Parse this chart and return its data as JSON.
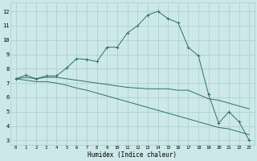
{
  "xlabel": "Humidex (Indice chaleur)",
  "x_ticks": [
    0,
    1,
    2,
    3,
    4,
    5,
    6,
    7,
    8,
    9,
    10,
    11,
    12,
    13,
    14,
    15,
    16,
    17,
    18,
    19,
    20,
    21,
    22,
    23
  ],
  "y_ticks": [
    3,
    4,
    5,
    6,
    7,
    8,
    9,
    10,
    11,
    12
  ],
  "ylim": [
    2.7,
    12.6
  ],
  "xlim": [
    -0.5,
    23.5
  ],
  "background_color": "#cde8e8",
  "grid_color": "#aacccc",
  "line_color": "#2a7070",
  "line1_x": [
    0,
    1,
    2,
    3,
    4,
    5,
    6,
    7,
    8,
    9,
    10,
    11,
    12,
    13,
    14,
    15,
    16,
    17,
    18,
    19,
    20,
    21,
    22,
    23
  ],
  "line1_y": [
    7.3,
    7.55,
    7.3,
    7.5,
    7.5,
    8.05,
    8.7,
    8.65,
    8.5,
    9.5,
    9.5,
    10.5,
    11.0,
    11.75,
    12.0,
    11.5,
    11.2,
    9.5,
    8.9,
    6.2,
    4.2,
    5.0,
    4.3,
    3.0
  ],
  "line2_x": [
    0,
    1,
    2,
    3,
    4,
    5,
    6,
    7,
    8,
    9,
    10,
    11,
    12,
    13,
    14,
    15,
    16,
    17,
    18,
    19,
    20,
    21,
    22,
    23
  ],
  "line2_y": [
    7.3,
    7.4,
    7.3,
    7.4,
    7.4,
    7.3,
    7.2,
    7.1,
    7.0,
    6.9,
    6.8,
    6.7,
    6.65,
    6.6,
    6.6,
    6.6,
    6.5,
    6.5,
    6.2,
    5.9,
    5.8,
    5.6,
    5.4,
    5.2
  ],
  "line3_x": [
    0,
    1,
    2,
    3,
    4,
    5,
    6,
    7,
    8,
    9,
    10,
    11,
    12,
    13,
    14,
    15,
    16,
    17,
    18,
    19,
    20,
    21,
    22,
    23
  ],
  "line3_y": [
    7.3,
    7.2,
    7.1,
    7.1,
    7.0,
    6.85,
    6.65,
    6.5,
    6.3,
    6.1,
    5.9,
    5.7,
    5.5,
    5.3,
    5.1,
    4.9,
    4.7,
    4.5,
    4.3,
    4.1,
    3.9,
    3.8,
    3.6,
    3.4
  ]
}
